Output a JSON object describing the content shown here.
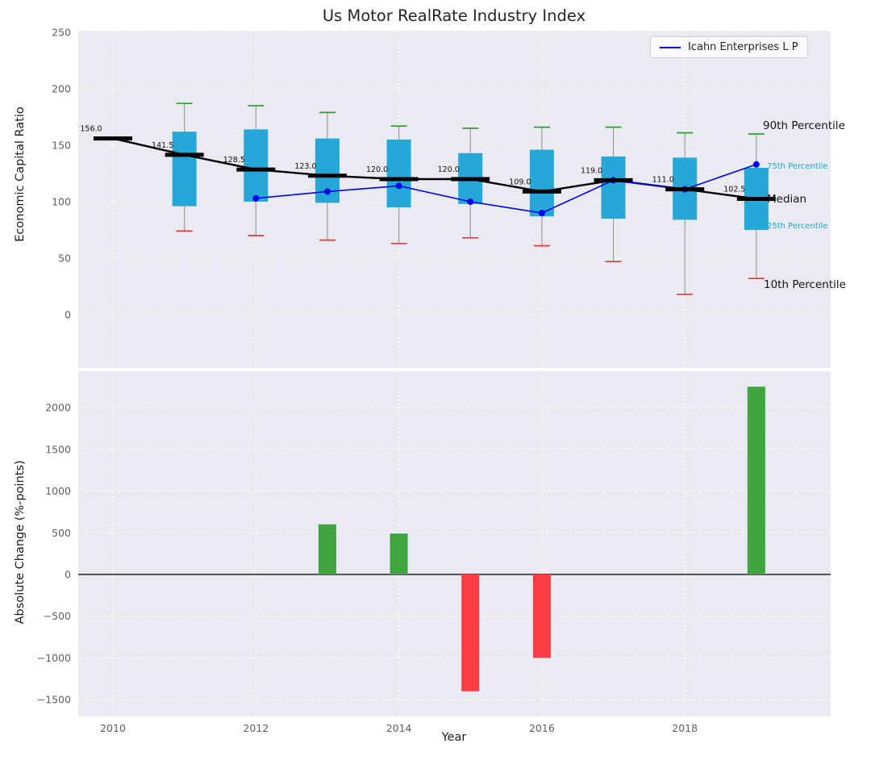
{
  "figure": {
    "title": "Us Motor RealRate Industry Index"
  },
  "top_chart": {
    "ylabel": "Economic Capital Ratio",
    "legend_label": "Icahn Enterprises L P",
    "annotations": {
      "p90": "90th Percentile",
      "p75": "75th Percentile",
      "median": "Median",
      "p25": "25th Percentile",
      "p10": "10th Percentile"
    }
  },
  "bottom_chart": {
    "ylabel": "Absolute Change (%-points)",
    "xlabel": "Year"
  },
  "chart_data": [
    {
      "type": "boxplot",
      "title": "Us Motor RealRate Industry Index",
      "ylabel": "Economic Capital Ratio",
      "ylim": [
        -47,
        249
      ],
      "grid": true,
      "legend_position": "upper right",
      "years": [
        2010,
        2011,
        2012,
        2013,
        2014,
        2015,
        2016,
        2017,
        2018,
        2019
      ],
      "median": [
        156.0,
        141.5,
        128.5,
        123.0,
        120.0,
        120.0,
        109.0,
        119.0,
        111.0,
        102.5
      ],
      "median_labels": [
        "156.0",
        "141.5",
        "128.5",
        "123.0",
        "120.0",
        "120.0",
        "109.0",
        "119.0",
        "111.0",
        "102.5"
      ],
      "q1": [
        null,
        96,
        100,
        99,
        95,
        98,
        87,
        85,
        84,
        75
      ],
      "q3": [
        null,
        162,
        164,
        156,
        155,
        143,
        146,
        140,
        139,
        130
      ],
      "p10": [
        null,
        74,
        70,
        66,
        63,
        68,
        61,
        47,
        18,
        32
      ],
      "p90": [
        null,
        187,
        185,
        179,
        167,
        165,
        166,
        166,
        161,
        160
      ],
      "series": [
        {
          "name": "Icahn Enterprises L P",
          "x": [
            2012,
            2013,
            2014,
            2015,
            2016,
            2017,
            2018,
            2019
          ],
          "values": [
            103,
            109,
            114,
            100,
            90,
            119,
            111,
            133
          ]
        }
      ],
      "yticks": [
        {
          "v": 0,
          "label": "0"
        },
        {
          "v": 50,
          "label": "50"
        },
        {
          "v": 100,
          "label": "100"
        },
        {
          "v": 150,
          "label": "150"
        },
        {
          "v": 200,
          "label": "200"
        },
        {
          "v": 250,
          "label": "250"
        }
      ],
      "xticks": [
        {
          "v": 2010,
          "label": "2010"
        },
        {
          "v": 2012,
          "label": "2012"
        },
        {
          "v": 2014,
          "label": "2014"
        },
        {
          "v": 2016,
          "label": "2016"
        },
        {
          "v": 2018,
          "label": "2018"
        }
      ],
      "colors": {
        "panel_bg": "#eaeaf2",
        "box": "#25a8d8",
        "median": "#000000",
        "whisker": "#9a9aa0",
        "cap_top": "#2ca02c",
        "cap_bottom": "#e03c3c",
        "series": "#0000ee",
        "annotation_cyan": "#1ca9c9"
      }
    },
    {
      "type": "bar",
      "ylabel": "Absolute Change (%-points)",
      "xlabel": "Year",
      "ylim": [
        -1700,
        2440
      ],
      "grid": true,
      "years": [
        2010,
        2011,
        2012,
        2013,
        2014,
        2015,
        2016,
        2017,
        2018,
        2019
      ],
      "values": [
        null,
        null,
        null,
        600,
        490,
        -1400,
        -1000,
        null,
        null,
        2250
      ],
      "yticks": [
        {
          "v": -1500,
          "label": "−1500"
        },
        {
          "v": -1000,
          "label": "−1000"
        },
        {
          "v": -500,
          "label": "−500"
        },
        {
          "v": 0,
          "label": "0"
        },
        {
          "v": 500,
          "label": "500"
        },
        {
          "v": 1000,
          "label": "1000"
        },
        {
          "v": 1500,
          "label": "1500"
        },
        {
          "v": 2000,
          "label": "2000"
        }
      ],
      "xticks": [
        {
          "v": 2010,
          "label": "2010"
        },
        {
          "v": 2012,
          "label": "2012"
        },
        {
          "v": 2014,
          "label": "2014"
        },
        {
          "v": 2016,
          "label": "2016"
        },
        {
          "v": 2018,
          "label": "2018"
        }
      ],
      "colors": {
        "panel_bg": "#eaeaf2",
        "positive": "#3fa43f",
        "negative": "#fc3d45",
        "zero_line": "#000000"
      }
    }
  ]
}
